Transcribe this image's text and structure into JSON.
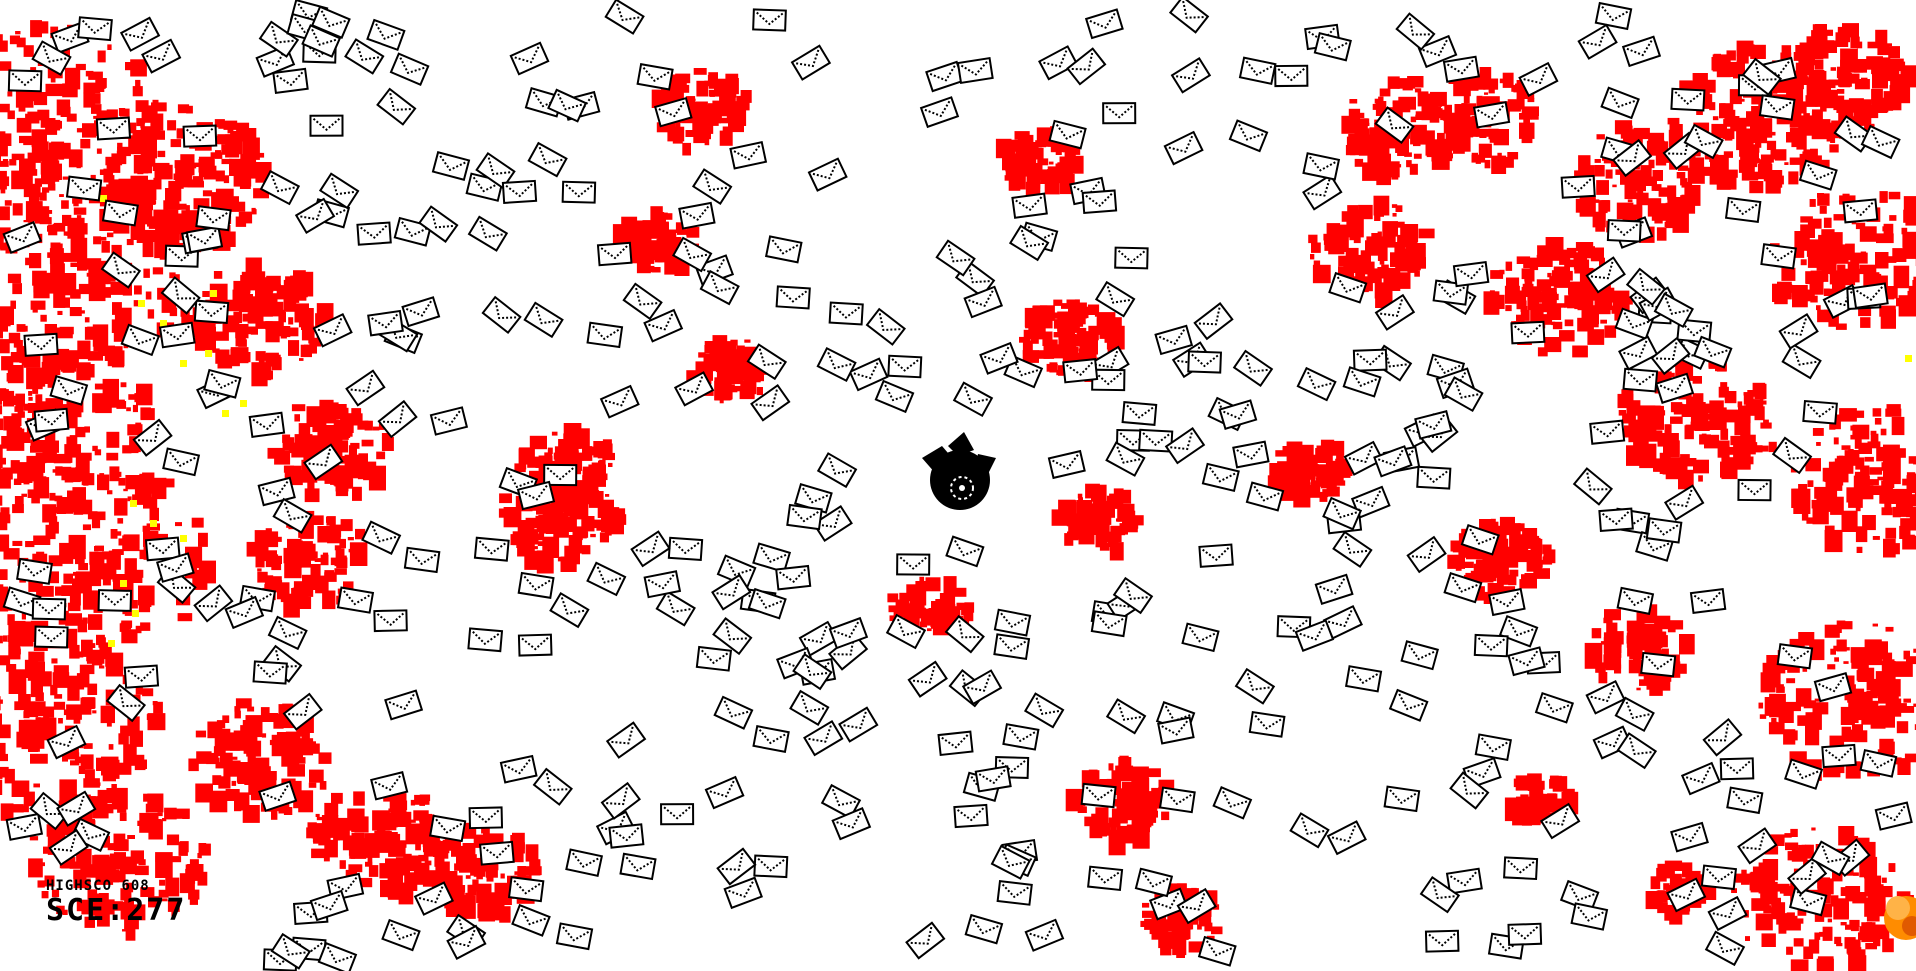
{
  "hud": {
    "highscore_label": "HIGHSCO",
    "highscore_value": "608",
    "score_label": "SC",
    "score_obscured": "",
    "score_label_tail": "E:",
    "score_value": "277"
  },
  "colors": {
    "background": "#ffffff",
    "blood": "#ff0000",
    "envelope_stroke": "#000000",
    "envelope_fill": "#ffffff",
    "player": "#000000",
    "sparks": "#ffff00",
    "explosion": "#ff8c00"
  },
  "icons": {
    "envelope": "envelope-icon",
    "player": "player-ship-icon",
    "explosion": "explosion-icon"
  }
}
